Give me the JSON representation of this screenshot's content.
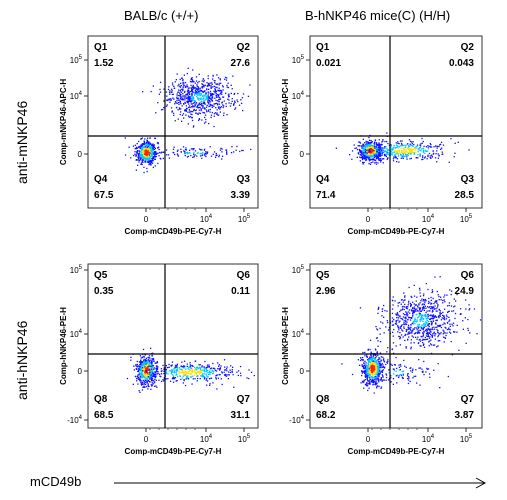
{
  "columns": [
    "BALB/c (+/+)",
    "B-hNKP46 mice(C) (H/H)"
  ],
  "rows": [
    "anti-mNKP46",
    "anti-hNKP46"
  ],
  "x_axis_main": "mCD49b",
  "colors": {
    "density_low": "#1010ff",
    "density_mid": "#00c8ff",
    "density_high": "#ffe000",
    "density_peak": "#ff2000",
    "gate": "#000000"
  },
  "chart_data": [
    {
      "type": "scatter",
      "panel": "BALB/c anti-mNKP46",
      "xlabel": "Comp-mCD49b-PE-Cy7-H",
      "ylabel": "Comp-mNKP46-APC-H",
      "x_ticks": [
        "0",
        "10^4",
        "10^5"
      ],
      "y_ticks": [
        "10^5",
        "10^4",
        "0"
      ],
      "quadrants": [
        {
          "name": "Q1",
          "value": "1.52"
        },
        {
          "name": "Q2",
          "value": "27.6"
        },
        {
          "name": "Q4",
          "value": "67.5"
        },
        {
          "name": "Q3",
          "value": "3.39"
        }
      ]
    },
    {
      "type": "scatter",
      "panel": "B-hNKP46 anti-mNKP46",
      "xlabel": "Comp-mCD49b-PE-Cy7-H",
      "ylabel": "Comp-mNKP46-APC-H",
      "x_ticks": [
        "0",
        "10^4",
        "10^5"
      ],
      "y_ticks": [
        "10^5",
        "10^4",
        "0"
      ],
      "quadrants": [
        {
          "name": "Q1",
          "value": "0.021"
        },
        {
          "name": "Q2",
          "value": "0.043"
        },
        {
          "name": "Q4",
          "value": "71.4"
        },
        {
          "name": "Q3",
          "value": "28.5"
        }
      ]
    },
    {
      "type": "scatter",
      "panel": "BALB/c anti-hNKP46",
      "xlabel": "Comp-mCD49b-PE-Cy7-H",
      "ylabel": "Comp-hNKP46-PE-H",
      "x_ticks": [
        "0",
        "10^4",
        "10^5"
      ],
      "y_ticks": [
        "10^5",
        "10^4",
        "0",
        "-10^4"
      ],
      "quadrants": [
        {
          "name": "Q5",
          "value": "0.35"
        },
        {
          "name": "Q6",
          "value": "0.11"
        },
        {
          "name": "Q8",
          "value": "68.5"
        },
        {
          "name": "Q7",
          "value": "31.1"
        }
      ]
    },
    {
      "type": "scatter",
      "panel": "B-hNKP46 anti-hNKP46",
      "xlabel": "Comp-mCD49b-PE-Cy7-H",
      "ylabel": "Comp-hNKP46-PE-H",
      "x_ticks": [
        "0",
        "10^4",
        "10^5"
      ],
      "y_ticks": [
        "10^5",
        "10^4",
        "0",
        "-10^4"
      ],
      "quadrants": [
        {
          "name": "Q5",
          "value": "2.96"
        },
        {
          "name": "Q6",
          "value": "24.9"
        },
        {
          "name": "Q8",
          "value": "68.2"
        },
        {
          "name": "Q7",
          "value": "3.87"
        }
      ]
    }
  ]
}
